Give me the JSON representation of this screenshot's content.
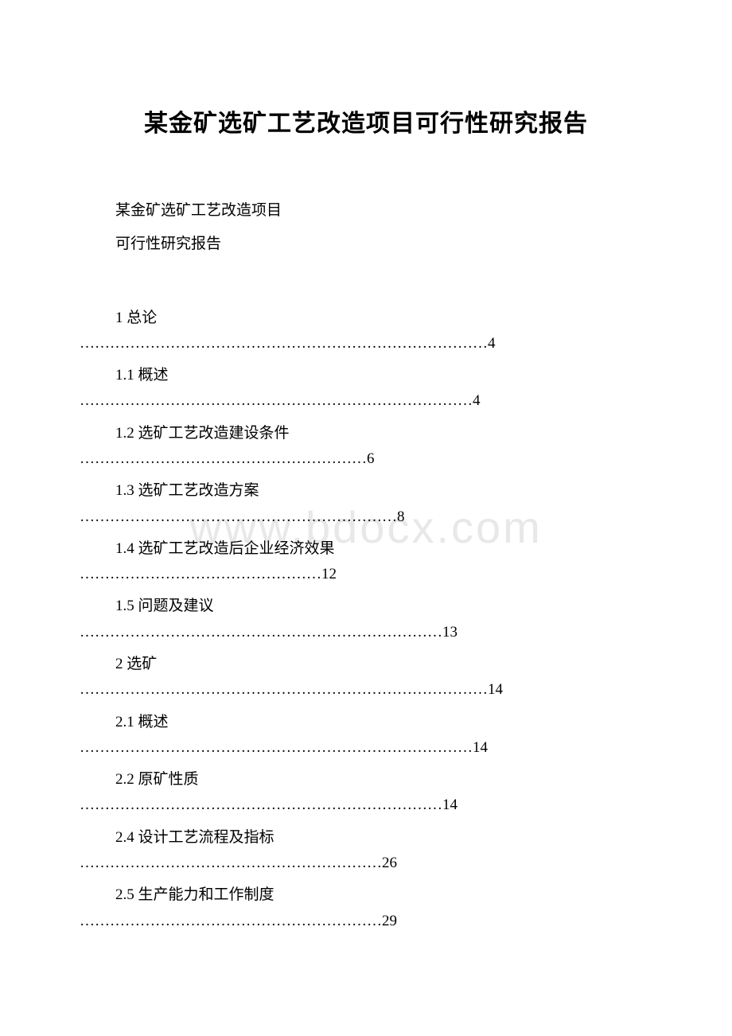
{
  "document": {
    "title": "某金矿选矿工艺改造项目可行性研究报告",
    "subtitle1": "某金矿选矿工艺改造项目",
    "subtitle2": "可行性研究报告",
    "watermark": "www.bdocx.com",
    "title_fontsize": 30,
    "body_fontsize": 19,
    "background_color": "#ffffff",
    "text_color": "#000000",
    "watermark_color": "#e8e8e8"
  },
  "toc": {
    "entries": [
      {
        "label": "1 总论",
        "dots": "………………………………………………………………………4"
      },
      {
        "label": "1.1 概述",
        "dots": "……………………………………………………………………4"
      },
      {
        "label": "1.2 选矿工艺改造建设条件",
        "dots": "…………………………………………………6"
      },
      {
        "label": "1.3 选矿工艺改造方案",
        "dots": "………………………………………………………8"
      },
      {
        "label": "1.4 选矿工艺改造后企业经济效果",
        "dots": "…………………………………………12"
      },
      {
        "label": "1.5 问题及建议",
        "dots": "………………………………………………………………13"
      },
      {
        "label": "2 选矿",
        "dots": "………………………………………………………………………14"
      },
      {
        "label": "2.1 概述",
        "dots": "……………………………………………………………………14"
      },
      {
        "label": "2.2 原矿性质",
        "dots": "………………………………………………………………14"
      },
      {
        "label": "2.4 设计工艺流程及指标",
        "dots": "……………………………………………………26"
      },
      {
        "label": "2.5 生产能力和工作制度",
        "dots": "……………………………………………………29"
      }
    ]
  }
}
